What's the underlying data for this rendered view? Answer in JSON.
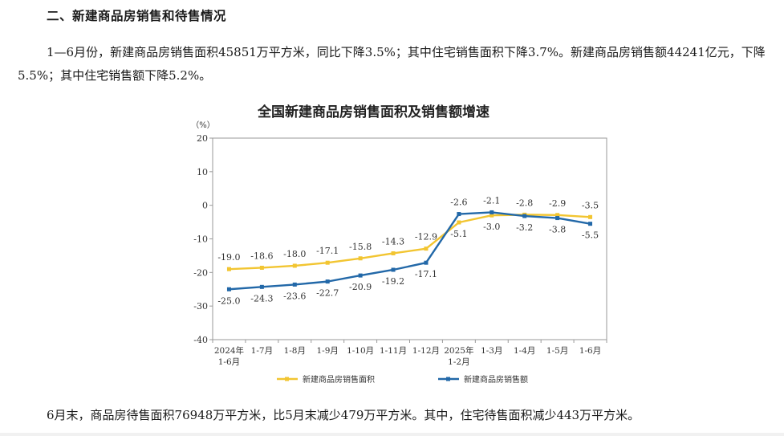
{
  "section_heading": "二、新建商品房销售和待售情况",
  "paragraph1": "1—6月份，新建商品房销售面积45851万平方米，同比下降3.5%；其中住宅销售面积下降3.7%。新建商品房销售额44241亿元，下降5.5%；其中住宅销售额下降5.2%。",
  "paragraph2": "6月末，商品房待售面积76948万平方米，比5月末减少479万平方米。其中，住宅待售面积减少443万平方米。",
  "colors": {
    "area_series": "#f2c531",
    "sales_series": "#2268a8",
    "frame": "#9a9a9a"
  },
  "chart_data": {
    "type": "line",
    "title": "全国新建商品房销售面积及销售额增速",
    "ylabel": "（%）",
    "xlabel": "",
    "ylim": [
      -40,
      20
    ],
    "yticks": [
      20,
      10,
      0,
      -10,
      -20,
      -30,
      -40
    ],
    "grid": false,
    "legend_position": "bottom",
    "categories": [
      [
        "2024年",
        "1-6月"
      ],
      [
        "1-7月"
      ],
      [
        "1-8月"
      ],
      [
        "1-9月"
      ],
      [
        "1-10月"
      ],
      [
        "1-11月"
      ],
      [
        "1-12月"
      ],
      [
        "2025年",
        "1-2月"
      ],
      [
        "1-3月"
      ],
      [
        "1-4月"
      ],
      [
        "1-5月"
      ],
      [
        "1-6月"
      ]
    ],
    "series": [
      {
        "name": "新建商品房销售面积",
        "color": "#f2c531",
        "values": [
          -19.0,
          -18.6,
          -18.0,
          -17.1,
          -15.8,
          -14.3,
          -12.9,
          -5.1,
          -3.0,
          -2.8,
          -2.9,
          -3.5
        ],
        "labels": [
          "-19.0",
          "-18.6",
          "-18.0",
          "-17.1",
          "-15.8",
          "-14.3",
          "-12.9",
          "-5.1",
          "-3.0",
          "-2.8",
          "-2.9",
          "-3.5"
        ]
      },
      {
        "name": "新建商品房销售额",
        "color": "#2268a8",
        "values": [
          -25.0,
          -24.3,
          -23.6,
          -22.7,
          -20.9,
          -19.2,
          -17.1,
          -2.6,
          -2.1,
          -3.2,
          -3.8,
          -5.5
        ],
        "labels": [
          "-25.0",
          "-24.3",
          "-23.6",
          "-22.7",
          "-20.9",
          "-19.2",
          "-17.1",
          "-2.6",
          "-2.1",
          "-3.2",
          "-3.8",
          "-5.5"
        ]
      }
    ]
  }
}
